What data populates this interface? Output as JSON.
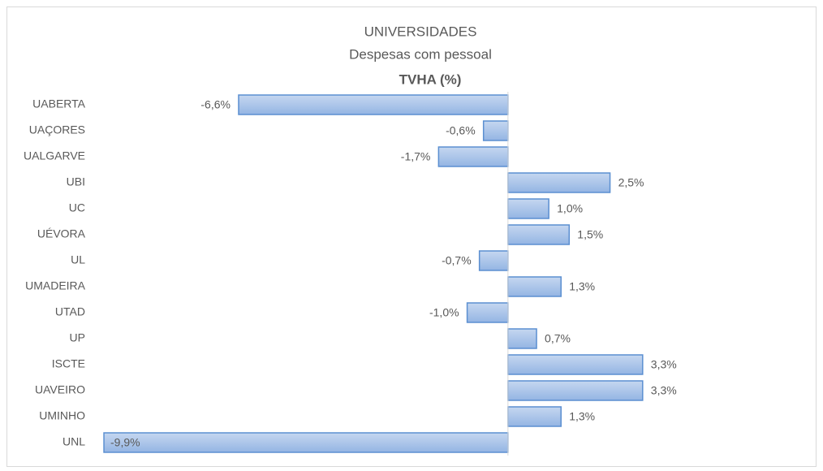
{
  "chart_data": {
    "type": "hbar",
    "title": "UNIVERSIDADES",
    "subtitle": "Despesas com pessoal",
    "heading": "TVHA (%)",
    "categories": [
      "UABERTA",
      "UAÇORES",
      "UALGARVE",
      "UBI",
      "UC",
      "UÉVORA",
      "UL",
      "UMADEIRA",
      "UTAD",
      "UP",
      "ISCTE",
      "UAVEIRO",
      "UMINHO",
      "UNL"
    ],
    "values": [
      -6.6,
      -0.6,
      -1.7,
      2.5,
      1.0,
      1.5,
      -0.7,
      1.3,
      -1.0,
      0.7,
      3.3,
      3.3,
      1.3,
      -9.9
    ],
    "value_labels": [
      "-6,6%",
      "-0,6%",
      "-1,7%",
      "2,5%",
      "1,0%",
      "1,5%",
      "-0,7%",
      "1,3%",
      "-1,0%",
      "0,7%",
      "3,3%",
      "3,3%",
      "1,3%",
      "-9,9%"
    ],
    "color": "#a9c4e8",
    "xlim": [
      -10,
      4
    ]
  }
}
